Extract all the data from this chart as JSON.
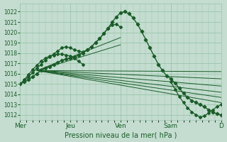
{
  "background_color": "#c4ddd0",
  "grid_color": "#98c4aa",
  "line_color": "#1a5c28",
  "title": "Pression niveau de la mer( hPa )",
  "ylim": [
    1011.5,
    1022.8
  ],
  "yticks": [
    1012,
    1013,
    1014,
    1015,
    1016,
    1017,
    1018,
    1019,
    1020,
    1021,
    1022
  ],
  "xtick_labels": [
    "Mer",
    "Jeu",
    "Ven",
    "Sam",
    "D"
  ],
  "xtick_positions": [
    0,
    24,
    48,
    72,
    96
  ],
  "x_total": 96,
  "main_curve_x": [
    0,
    2,
    4,
    6,
    8,
    10,
    12,
    14,
    16,
    18,
    20,
    22,
    24,
    26,
    28,
    30,
    32,
    34,
    36,
    38,
    40,
    42,
    44,
    46,
    48,
    50,
    52,
    54,
    56,
    58,
    60,
    62,
    64,
    66,
    68,
    70,
    72,
    74,
    76,
    78,
    80,
    82,
    84,
    86,
    88,
    90,
    92,
    94,
    96
  ],
  "main_curve_y": [
    1015.0,
    1015.2,
    1015.4,
    1015.7,
    1016.0,
    1016.3,
    1016.5,
    1016.7,
    1016.9,
    1017.1,
    1017.3,
    1017.4,
    1017.5,
    1017.6,
    1017.8,
    1018.0,
    1018.3,
    1018.6,
    1019.0,
    1019.4,
    1019.9,
    1020.4,
    1021.0,
    1021.5,
    1021.9,
    1022.0,
    1021.8,
    1021.4,
    1020.8,
    1020.1,
    1019.3,
    1018.5,
    1017.7,
    1016.9,
    1016.3,
    1015.8,
    1015.5,
    1015.1,
    1014.6,
    1014.1,
    1013.7,
    1013.4,
    1013.2,
    1013.0,
    1012.8,
    1012.5,
    1012.3,
    1012.1,
    1012.0
  ],
  "loop_curve1_x": [
    0,
    2,
    4,
    6,
    8,
    10,
    12,
    14,
    16,
    18,
    20,
    22,
    24,
    26,
    28,
    30,
    32,
    34,
    36,
    38,
    40,
    42,
    44,
    46,
    48
  ],
  "loop_curve1_y": [
    1015.0,
    1015.3,
    1015.7,
    1016.1,
    1016.5,
    1016.9,
    1017.3,
    1017.6,
    1017.9,
    1018.2,
    1018.5,
    1018.6,
    1018.5,
    1018.3,
    1018.2,
    1018.1,
    1018.3,
    1018.6,
    1019.0,
    1019.4,
    1019.9,
    1020.4,
    1020.7,
    1020.8,
    1020.5
  ],
  "loop_curve2_x": [
    0,
    2,
    4,
    6,
    8,
    10,
    12,
    14,
    16,
    18,
    20,
    22,
    24,
    26,
    28,
    30
  ],
  "loop_curve2_y": [
    1015.0,
    1015.4,
    1015.9,
    1016.4,
    1016.8,
    1017.2,
    1017.5,
    1017.7,
    1017.8,
    1017.9,
    1017.9,
    1017.8,
    1017.7,
    1017.5,
    1017.2,
    1016.9
  ],
  "dip_curve_x": [
    72,
    74,
    76,
    78,
    80,
    82,
    84,
    86,
    88,
    90,
    92,
    94,
    96
  ],
  "dip_curve_y": [
    1015.2,
    1014.5,
    1013.8,
    1013.2,
    1012.7,
    1012.3,
    1012.0,
    1011.8,
    1011.9,
    1012.2,
    1012.5,
    1012.8,
    1013.0
  ],
  "fan_lines": [
    {
      "x0": 8,
      "y0": 1016.3,
      "x1": 96,
      "y1": 1016.2
    },
    {
      "x0": 8,
      "y0": 1016.3,
      "x1": 96,
      "y1": 1015.5
    },
    {
      "x0": 8,
      "y0": 1016.3,
      "x1": 96,
      "y1": 1014.8
    },
    {
      "x0": 8,
      "y0": 1016.3,
      "x1": 96,
      "y1": 1014.2
    },
    {
      "x0": 8,
      "y0": 1016.3,
      "x1": 96,
      "y1": 1013.7
    },
    {
      "x0": 8,
      "y0": 1016.3,
      "x1": 96,
      "y1": 1013.2
    },
    {
      "x0": 8,
      "y0": 1016.3,
      "x1": 48,
      "y1": 1018.8
    },
    {
      "x0": 8,
      "y0": 1016.3,
      "x1": 48,
      "y1": 1019.5
    }
  ]
}
